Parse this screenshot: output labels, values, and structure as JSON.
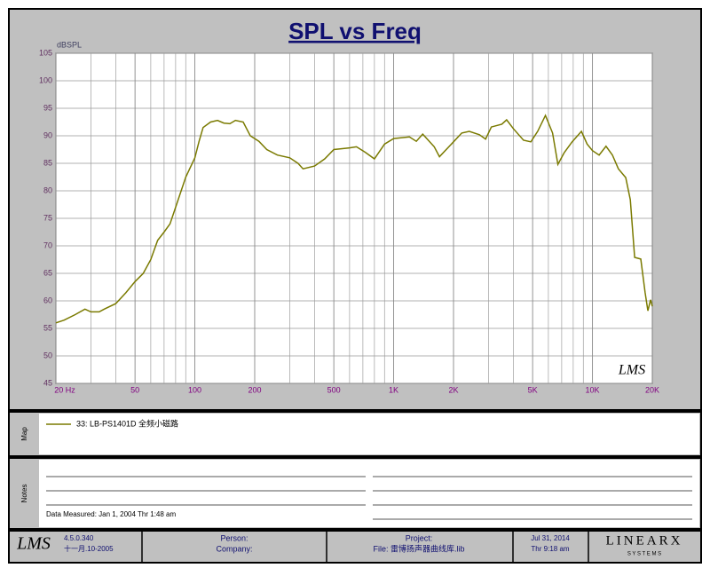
{
  "chart_data": {
    "type": "line",
    "title": "SPL vs Freq",
    "y_label": "dBSPL",
    "watermark": "LMS",
    "x": [
      20,
      22,
      25,
      28,
      30,
      33,
      35,
      40,
      45,
      50,
      55,
      60,
      65,
      70,
      75,
      80,
      90,
      100,
      105,
      110,
      120,
      130,
      140,
      150,
      160,
      175,
      190,
      210,
      230,
      260,
      300,
      330,
      350,
      400,
      450,
      500,
      600,
      650,
      720,
      800,
      900,
      1000,
      1200,
      1300,
      1400,
      1600,
      1700,
      2000,
      2200,
      2400,
      2700,
      2900,
      3100,
      3500,
      3700,
      4000,
      4500,
      4900,
      5300,
      5800,
      6300,
      6700,
      7200,
      7900,
      8800,
      9400,
      10000,
      10800,
      11700,
      12600,
      13500,
      14700,
      15500,
      16300,
      17500,
      18400,
      19000,
      19600,
      20000
    ],
    "series": [
      {
        "name": "33: LB-PS1401D 全频小磁路",
        "color": "#7a7a00",
        "values": [
          56,
          56.5,
          57.5,
          58.5,
          58,
          58,
          58.5,
          59.5,
          61.5,
          63.5,
          65,
          67.5,
          71,
          72.5,
          74,
          77,
          82.5,
          86,
          89,
          91.5,
          92.5,
          92.8,
          92.3,
          92.2,
          92.8,
          92.5,
          90,
          89,
          87.5,
          86.5,
          86,
          85,
          84,
          84.5,
          85.8,
          87.5,
          87.8,
          88,
          87,
          85.8,
          88.5,
          89.5,
          89.8,
          89,
          90.3,
          88,
          86.2,
          88.9,
          90.5,
          90.8,
          90.2,
          89.4,
          91.6,
          92.1,
          92.9,
          91.3,
          89.2,
          88.9,
          90.8,
          93.7,
          90.5,
          84.8,
          86.9,
          88.9,
          90.8,
          88.5,
          87.3,
          86.5,
          88.1,
          86.5,
          84,
          82.4,
          78.4,
          67.9,
          67.6,
          61.5,
          58.2,
          60.2,
          59
        ]
      }
    ],
    "xlim": [
      20,
      20000
    ],
    "x_log": true,
    "xticks": [
      {
        "value": 20,
        "label": "20 Hz"
      },
      50,
      100,
      200,
      500,
      {
        "value": 1000,
        "label": "1K"
      },
      {
        "value": 2000,
        "label": "2K"
      },
      {
        "value": 5000,
        "label": "5K"
      },
      {
        "value": 10000,
        "label": "10K"
      },
      {
        "value": 20000,
        "label": "20K"
      }
    ],
    "x_minor_grid": [
      30,
      40,
      60,
      70,
      80,
      90,
      300,
      400,
      600,
      700,
      800,
      900,
      3000,
      4000,
      6000,
      7000,
      8000,
      9000
    ],
    "ylim": [
      45,
      105
    ],
    "yticks": [
      45,
      50,
      55,
      60,
      65,
      70,
      75,
      80,
      85,
      90,
      95,
      100,
      105
    ],
    "grid": true
  },
  "map": {
    "label": "Map"
  },
  "notes": {
    "label": "Notes",
    "data_measured": "Data Measured: Jan  1, 2004  Thr  1:48 am"
  },
  "footer": {
    "logo": "LMS",
    "version": "4.5.0.340",
    "build_date": "十一月.10-2005",
    "person": "Person:",
    "company": "Company:",
    "project": "Project:",
    "file": "File: 雷博扬声器曲线库.lib",
    "date": "Jul 31, 2014",
    "time": "Thr  9:18 am",
    "brand": "LINEARX",
    "brand_sub": "S Y S T E M S"
  }
}
